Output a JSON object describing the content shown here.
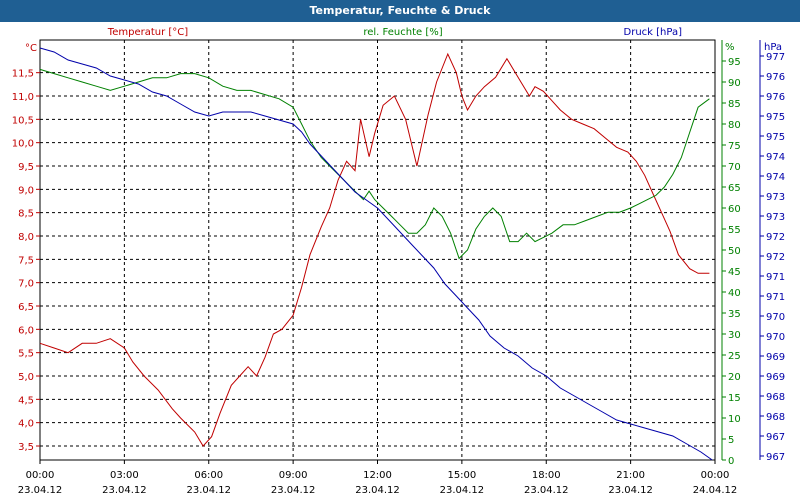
{
  "window_title": "Temperatur, Feuchte & Druck",
  "chart_data": {
    "type": "line",
    "title": "Temperatur, Feuchte & Druck",
    "colors": {
      "temp": "#c00000",
      "hum": "#008000",
      "press": "#0000aa",
      "title_bar": "#1f5f93"
    },
    "axes": {
      "left": {
        "label": "Temperatur [°C]",
        "unit": "°C",
        "min": 3.2,
        "max": 12.2,
        "ticks": [
          "3,5",
          "4,0",
          "4,5",
          "5,0",
          "5,5",
          "6,0",
          "6,5",
          "7,0",
          "7,5",
          "8,0",
          "8,5",
          "9,0",
          "9,5",
          "10,0",
          "10,5",
          "11,0",
          "11,5"
        ]
      },
      "right1": {
        "label": "rel. Feuchte [%]",
        "unit": "%",
        "min": 0,
        "max": 100,
        "ticks": [
          "0",
          "5",
          "10",
          "15",
          "20",
          "25",
          "30",
          "35",
          "40",
          "45",
          "50",
          "55",
          "60",
          "65",
          "70",
          "75",
          "80",
          "85",
          "90",
          "95"
        ]
      },
      "right2": {
        "label": "Druck [hPa]",
        "unit": "hPa",
        "min": 966.9,
        "max": 977.4,
        "ticks": [
          "967",
          "967",
          "968",
          "968",
          "969",
          "969",
          "970",
          "970",
          "971",
          "971",
          "972",
          "972",
          "973",
          "973",
          "974",
          "974",
          "975",
          "975",
          "976",
          "976",
          "977"
        ]
      },
      "x": {
        "min": 0,
        "max": 24,
        "ticks": [
          {
            "time": "00:00",
            "date": "23.04.12"
          },
          {
            "time": "03:00",
            "date": "23.04.12"
          },
          {
            "time": "06:00",
            "date": "23.04.12"
          },
          {
            "time": "09:00",
            "date": "23.04.12"
          },
          {
            "time": "12:00",
            "date": "23.04.12"
          },
          {
            "time": "15:00",
            "date": "23.04.12"
          },
          {
            "time": "18:00",
            "date": "23.04.12"
          },
          {
            "time": "21:00",
            "date": "23.04.12"
          },
          {
            "time": "00:00",
            "date": "24.04.12"
          }
        ]
      }
    },
    "series": [
      {
        "name": "Temperatur [°C]",
        "axis": "left",
        "color": "#c00000",
        "x": [
          0,
          0.5,
          1,
          1.5,
          2,
          2.5,
          3,
          3.3,
          3.7,
          4.2,
          4.7,
          5,
          5.5,
          5.8,
          6.1,
          6.4,
          6.8,
          7.1,
          7.4,
          7.7,
          8,
          8.3,
          8.6,
          9,
          9.3,
          9.6,
          10,
          10.3,
          10.6,
          10.9,
          11.2,
          11.4,
          11.7,
          11.9,
          12.2,
          12.6,
          13,
          13.4,
          13.8,
          14.1,
          14.5,
          14.8,
          15,
          15.2,
          15.5,
          15.8,
          16.2,
          16.6,
          17.1,
          17.4,
          17.6,
          17.9,
          18.2,
          18.5,
          18.9,
          19.3,
          19.7,
          20.1,
          20.5,
          20.9,
          21.2,
          21.5,
          21.8,
          22.1,
          22.4,
          22.7,
          23.1,
          23.4,
          23.8
        ],
        "values": [
          5.7,
          5.6,
          5.5,
          5.7,
          5.7,
          5.8,
          5.6,
          5.3,
          5.0,
          4.7,
          4.3,
          4.1,
          3.8,
          3.5,
          3.7,
          4.2,
          4.8,
          5.0,
          5.2,
          5.0,
          5.4,
          5.9,
          6.0,
          6.3,
          6.9,
          7.6,
          8.2,
          8.6,
          9.2,
          9.6,
          9.4,
          10.5,
          9.7,
          10.2,
          10.8,
          11.0,
          10.5,
          9.5,
          10.6,
          11.3,
          11.9,
          11.5,
          11.0,
          10.7,
          11.0,
          11.2,
          11.4,
          11.8,
          11.3,
          11.0,
          11.2,
          11.1,
          10.9,
          10.7,
          10.5,
          10.4,
          10.3,
          10.1,
          9.9,
          9.8,
          9.6,
          9.3,
          8.9,
          8.5,
          8.1,
          7.6,
          7.3,
          7.2,
          7.2
        ]
      },
      {
        "name": "rel. Feuchte [%]",
        "axis": "right1",
        "color": "#008000",
        "x": [
          0,
          0.5,
          1,
          1.5,
          2,
          2.5,
          3,
          3.5,
          4,
          4.5,
          5,
          5.5,
          6,
          6.5,
          7,
          7.5,
          8,
          8.5,
          9,
          9.3,
          9.6,
          10,
          10.3,
          10.6,
          10.9,
          11.2,
          11.5,
          11.7,
          11.9,
          12.2,
          12.5,
          12.8,
          13.1,
          13.4,
          13.7,
          14,
          14.3,
          14.6,
          14.9,
          15.2,
          15.5,
          15.8,
          16.1,
          16.4,
          16.7,
          17,
          17.3,
          17.6,
          17.9,
          18.2,
          18.6,
          19,
          19.4,
          19.8,
          20.2,
          20.6,
          21,
          21.3,
          21.6,
          21.9,
          22.2,
          22.5,
          22.8,
          23.1,
          23.4,
          23.8
        ],
        "values": [
          93,
          92,
          91,
          90,
          89,
          88,
          89,
          90,
          91,
          91,
          92,
          92,
          91,
          89,
          88,
          88,
          87,
          86,
          84,
          80,
          76,
          72,
          70,
          68,
          66,
          64,
          62,
          64,
          62,
          60,
          58,
          56,
          54,
          54,
          56,
          60,
          58,
          54,
          48,
          50,
          55,
          58,
          60,
          58,
          52,
          52,
          54,
          52,
          53,
          54,
          56,
          56,
          57,
          58,
          59,
          59,
          60,
          61,
          62,
          63,
          65,
          68,
          72,
          78,
          84,
          86
        ]
      },
      {
        "name": "Druck [hPa]",
        "axis": "right2",
        "color": "#0000aa",
        "x": [
          0,
          0.5,
          1,
          1.5,
          2,
          2.5,
          3,
          3.5,
          4,
          4.5,
          5,
          5.5,
          6,
          6.5,
          7,
          7.5,
          8,
          8.5,
          9,
          9.3,
          9.6,
          10,
          10.4,
          10.8,
          11.2,
          11.6,
          12,
          12.4,
          12.8,
          13.2,
          13.6,
          14,
          14.4,
          14.8,
          15.2,
          15.6,
          16,
          16.5,
          17,
          17.5,
          18,
          18.5,
          19,
          19.5,
          20,
          20.5,
          21,
          21.5,
          22,
          22.5,
          23,
          23.5,
          23.9
        ],
        "values": [
          977.2,
          977.1,
          976.9,
          976.8,
          976.7,
          976.5,
          976.4,
          976.3,
          976.1,
          976.0,
          975.8,
          975.6,
          975.5,
          975.6,
          975.6,
          975.6,
          975.5,
          975.4,
          975.3,
          975.1,
          974.8,
          974.5,
          974.2,
          973.9,
          973.6,
          973.4,
          973.2,
          972.9,
          972.6,
          972.3,
          972.0,
          971.7,
          971.3,
          971.0,
          970.7,
          970.4,
          970.0,
          969.7,
          969.5,
          969.2,
          969.0,
          968.7,
          968.5,
          968.3,
          968.1,
          967.9,
          967.8,
          967.7,
          967.6,
          967.5,
          967.3,
          967.1,
          966.9
        ]
      }
    ]
  }
}
